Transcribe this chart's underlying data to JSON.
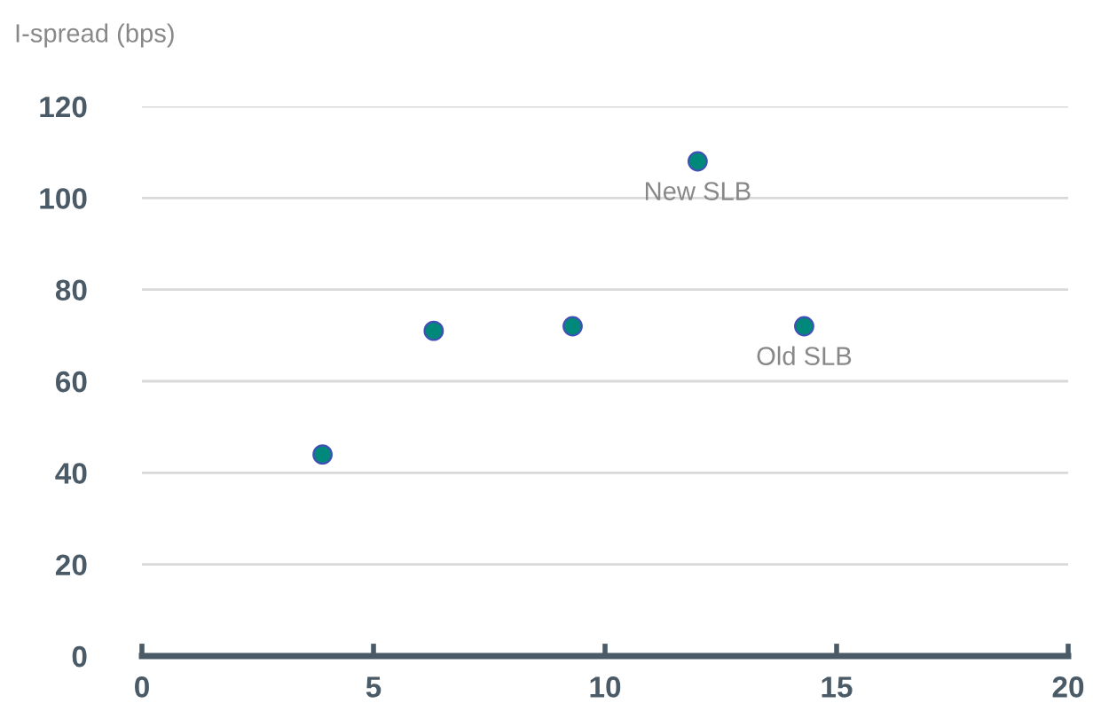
{
  "chart_data": {
    "type": "scatter",
    "ylabel": "I-spread (bps)",
    "x": [
      3.9,
      6.3,
      9.3,
      12.0,
      14.3
    ],
    "series": [
      {
        "color": "#00897b",
        "values": [
          44,
          71,
          72,
          108,
          72
        ]
      }
    ],
    "annotations": [
      {
        "text": "New SLB",
        "x": 12.0,
        "y": 108
      },
      {
        "text": "Old SLB",
        "x": 14.3,
        "y": 72
      }
    ],
    "xlim": [
      0,
      20
    ],
    "xticks": [
      0,
      5,
      10,
      15,
      20
    ],
    "ylim": [
      0,
      120
    ],
    "yticks": [
      0,
      20,
      40,
      60,
      80,
      100,
      120
    ],
    "grid": "y",
    "marker": "circle",
    "legend": false
  }
}
